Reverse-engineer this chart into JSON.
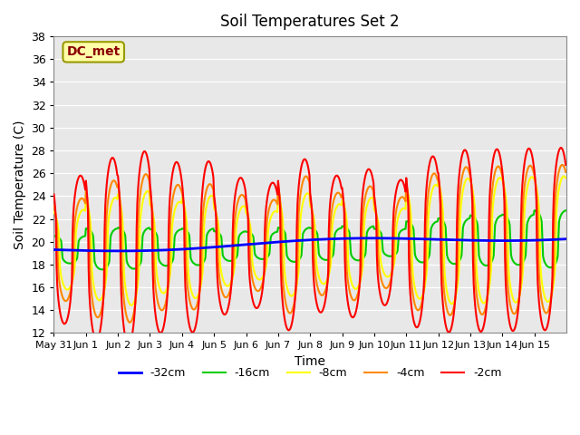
{
  "title": "Soil Temperatures Set 2",
  "xlabel": "Time",
  "ylabel": "Soil Temperature (C)",
  "ylim": [
    12,
    38
  ],
  "yticks": [
    12,
    14,
    16,
    18,
    20,
    22,
    24,
    26,
    28,
    30,
    32,
    34,
    36,
    38
  ],
  "annotation": "DC_met",
  "background_color": "#e0e0e0",
  "plot_bg": "#e8e8e8",
  "series": {
    "-32cm": {
      "color": "#0000ff",
      "linewidth": 2.0
    },
    "-16cm": {
      "color": "#00cc00",
      "linewidth": 1.5
    },
    "-8cm": {
      "color": "#ffff00",
      "linewidth": 1.5
    },
    "-4cm": {
      "color": "#ff8800",
      "linewidth": 1.5
    },
    "-2cm": {
      "color": "#ff0000",
      "linewidth": 1.5
    }
  },
  "tick_labels": [
    "May 31",
    "Jun 1",
    "Jun 2",
    "Jun 3",
    "Jun 4",
    "Jun 5",
    "Jun 6",
    "Jun 7",
    "Jun 8",
    "Jun 9",
    "Jun 10",
    "Jun 11",
    "Jun 12",
    "Jun 13",
    "Jun 14",
    "Jun 15"
  ],
  "n_days": 16,
  "pts_per_day": 48
}
